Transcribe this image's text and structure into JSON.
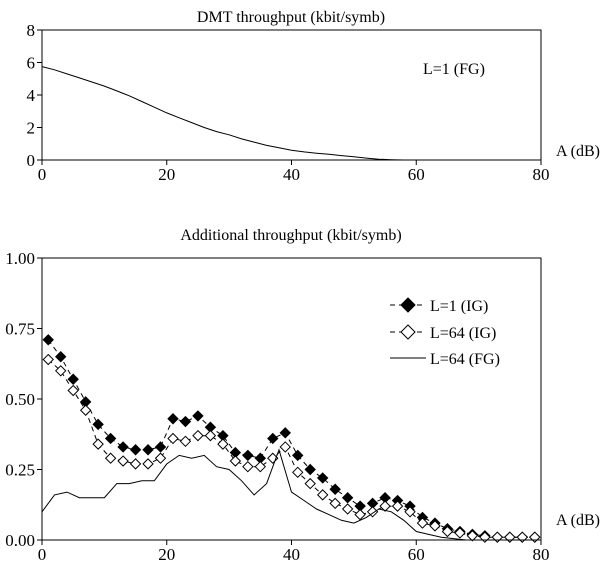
{
  "chart_data": [
    {
      "type": "line",
      "title": "DMT throughput (kbit/symb)",
      "xlabel": "A (dB)",
      "ylabel": "",
      "xlim": [
        0,
        80
      ],
      "ylim": [
        0,
        8
      ],
      "xticks": [
        "0",
        "20",
        "40",
        "60",
        "80"
      ],
      "yticks": [
        "0",
        "2",
        "4",
        "6",
        "8"
      ],
      "annotation": "L=1  (FG)",
      "grid": false,
      "series": [
        {
          "name": "L=1 (FG)",
          "style": "solid",
          "x": [
            0,
            2,
            4,
            6,
            8,
            10,
            12,
            14,
            16,
            18,
            20,
            22,
            24,
            26,
            28,
            30,
            32,
            34,
            36,
            38,
            40,
            42,
            44,
            46,
            48,
            50,
            52,
            54,
            56,
            58,
            60,
            62,
            64,
            66,
            68,
            70,
            72,
            74,
            76,
            78,
            80
          ],
          "y": [
            5.75,
            5.55,
            5.3,
            5.05,
            4.8,
            4.55,
            4.25,
            3.95,
            3.6,
            3.25,
            2.9,
            2.6,
            2.3,
            2.0,
            1.75,
            1.55,
            1.3,
            1.1,
            0.9,
            0.75,
            0.6,
            0.5,
            0.42,
            0.35,
            0.27,
            0.2,
            0.12,
            0.05,
            0.02,
            0.0,
            0.0,
            0.0,
            0.0,
            0.0,
            0.0,
            0.0,
            0.0,
            0.0,
            0.0,
            0.0,
            0.0
          ]
        }
      ]
    },
    {
      "type": "line",
      "title": "Additional throughput (kbit/symb)",
      "xlabel": "A (dB)",
      "ylabel": "",
      "xlim": [
        0,
        80
      ],
      "ylim": [
        0,
        1
      ],
      "xticks": [
        "0",
        "20",
        "40",
        "60",
        "80"
      ],
      "yticks": [
        "0.00",
        "0.25",
        "0.50",
        "0.75",
        "1.00"
      ],
      "grid": false,
      "legend": "right",
      "series": [
        {
          "name": "L=1  (IG)",
          "style": "dashed-filled-diamond",
          "x": [
            1,
            3,
            5,
            7,
            9,
            11,
            13,
            15,
            17,
            19,
            21,
            23,
            25,
            27,
            29,
            31,
            33,
            35,
            37,
            39,
            41,
            43,
            45,
            47,
            49,
            51,
            53,
            55,
            57,
            59,
            61,
            63,
            65,
            67,
            69,
            71,
            73,
            75,
            77,
            79
          ],
          "y": [
            0.71,
            0.65,
            0.57,
            0.49,
            0.41,
            0.36,
            0.33,
            0.32,
            0.32,
            0.33,
            0.43,
            0.42,
            0.44,
            0.4,
            0.37,
            0.31,
            0.3,
            0.29,
            0.36,
            0.38,
            0.3,
            0.25,
            0.22,
            0.18,
            0.15,
            0.12,
            0.13,
            0.15,
            0.14,
            0.12,
            0.08,
            0.06,
            0.04,
            0.03,
            0.02,
            0.015,
            0.01,
            0.01,
            0.01,
            0.01
          ]
        },
        {
          "name": "L=64 (IG)",
          "style": "dashed-open-diamond",
          "x": [
            1,
            3,
            5,
            7,
            9,
            11,
            13,
            15,
            17,
            19,
            21,
            23,
            25,
            27,
            29,
            31,
            33,
            35,
            37,
            39,
            41,
            43,
            45,
            47,
            49,
            51,
            53,
            55,
            57,
            59,
            61,
            63,
            65,
            67,
            69,
            71,
            73,
            75,
            77,
            79
          ],
          "y": [
            0.64,
            0.6,
            0.53,
            0.46,
            0.34,
            0.29,
            0.28,
            0.27,
            0.27,
            0.29,
            0.36,
            0.35,
            0.37,
            0.37,
            0.34,
            0.28,
            0.26,
            0.26,
            0.29,
            0.33,
            0.24,
            0.2,
            0.16,
            0.13,
            0.11,
            0.09,
            0.1,
            0.12,
            0.12,
            0.1,
            0.06,
            0.05,
            0.03,
            0.025,
            0.015,
            0.01,
            0.01,
            0.01,
            0.01,
            0.01
          ]
        },
        {
          "name": "L=64 (FG)",
          "style": "solid",
          "x": [
            0,
            2,
            4,
            6,
            8,
            10,
            12,
            14,
            16,
            18,
            20,
            22,
            24,
            26,
            28,
            30,
            32,
            34,
            36,
            38,
            40,
            42,
            44,
            46,
            48,
            50,
            52,
            54,
            56,
            58,
            60,
            62,
            64,
            66,
            68,
            70,
            72,
            74,
            76,
            78,
            80
          ],
          "y": [
            0.1,
            0.16,
            0.17,
            0.15,
            0.15,
            0.15,
            0.2,
            0.2,
            0.21,
            0.21,
            0.27,
            0.3,
            0.29,
            0.3,
            0.26,
            0.25,
            0.21,
            0.16,
            0.2,
            0.32,
            0.17,
            0.14,
            0.11,
            0.09,
            0.07,
            0.06,
            0.08,
            0.11,
            0.1,
            0.07,
            0.03,
            0.02,
            0.01,
            0.005,
            0.0,
            0.0,
            0.0,
            0.0,
            0.0,
            0.0,
            0.0
          ]
        }
      ]
    }
  ]
}
